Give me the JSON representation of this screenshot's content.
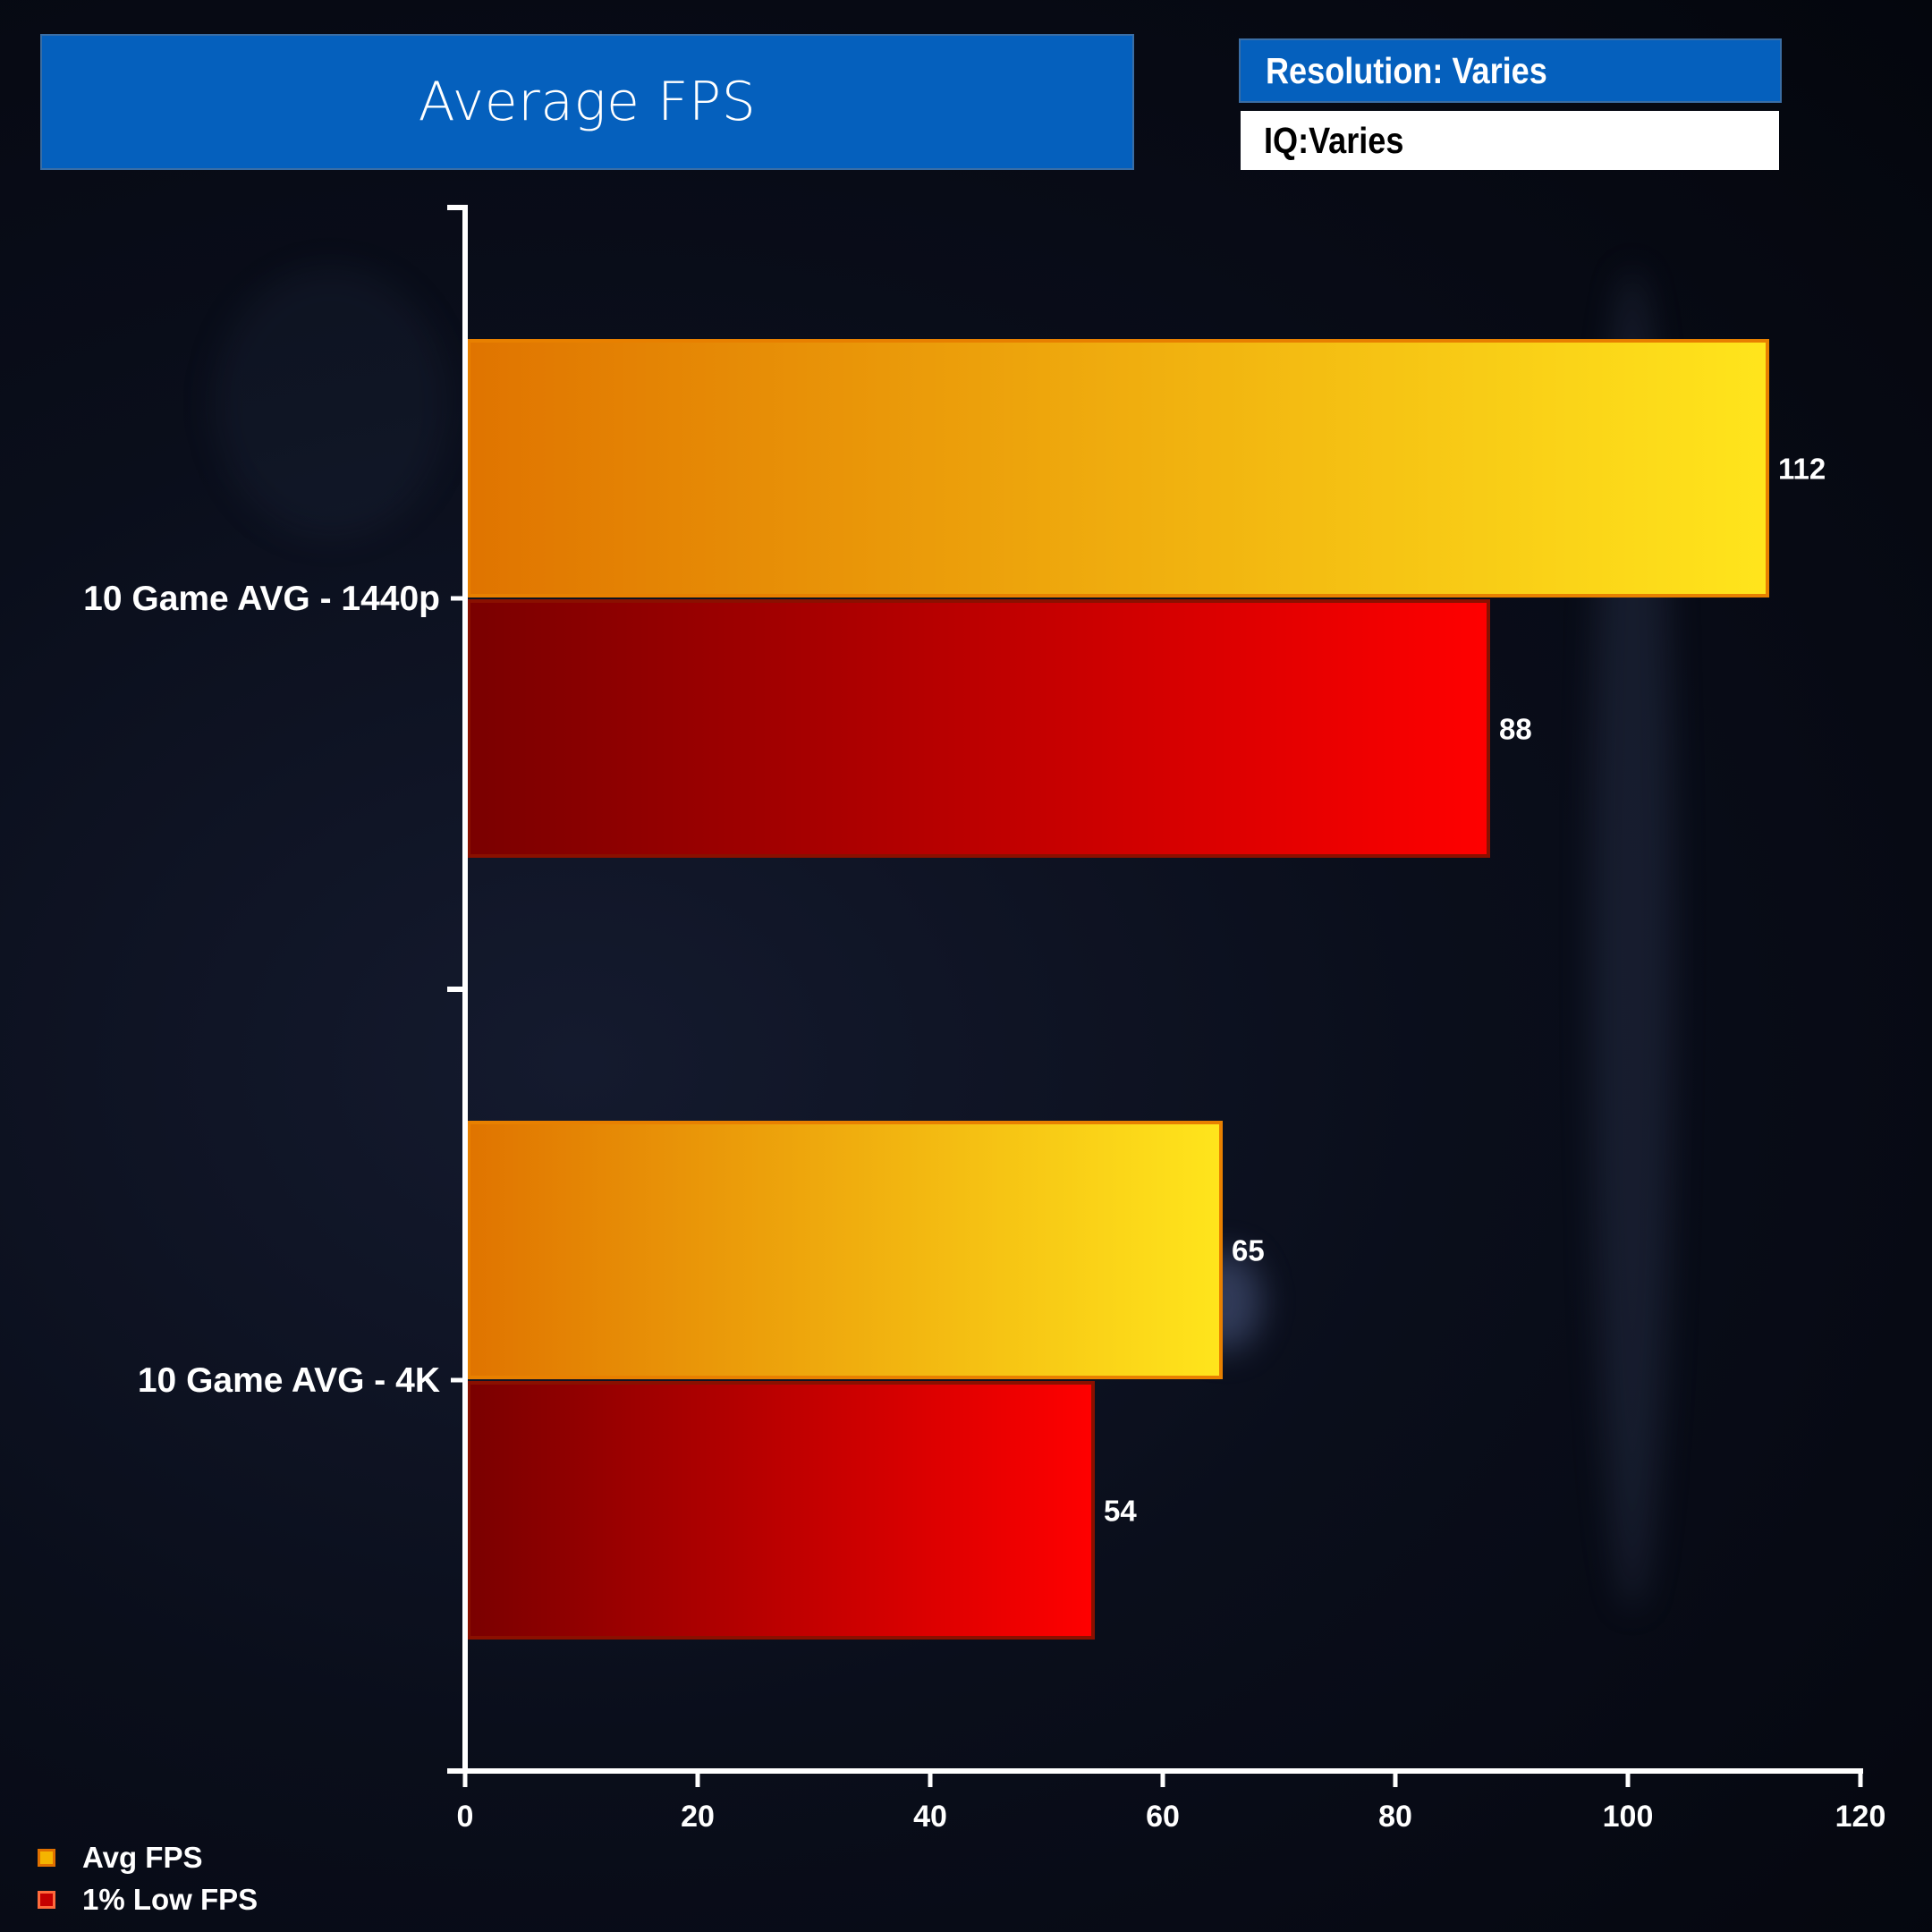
{
  "header": {
    "title": "Average FPS",
    "resolution_label": "Resolution: Varies",
    "iq_label": "IQ:Varies"
  },
  "colors": {
    "title_bg": "#0560bd",
    "avg_fps_dark": "#e07400",
    "avg_fps_light": "#ffe51c",
    "low_fps_dark": "#7a0000",
    "low_fps_light": "#ff0000",
    "axis": "#ffffff"
  },
  "legend": [
    {
      "label": "Avg FPS",
      "swatch": "#f5b400",
      "border": "#e07000"
    },
    {
      "label": "1% Low FPS",
      "swatch": "#c40000",
      "border": "#ff6a3c"
    }
  ],
  "chart_data": {
    "type": "bar",
    "orientation": "horizontal",
    "title": "Average FPS",
    "categories": [
      "10 Game AVG - 1440p",
      "10 Game AVG - 4K"
    ],
    "series": [
      {
        "name": "Avg FPS",
        "values": [
          112,
          65
        ]
      },
      {
        "name": "1% Low FPS",
        "values": [
          88,
          54
        ]
      }
    ],
    "xlim": [
      0,
      120
    ],
    "xticks": [
      0,
      20,
      40,
      60,
      80,
      100,
      120
    ],
    "data_labels": true,
    "grid": false,
    "legend_position": "bottom-left"
  }
}
